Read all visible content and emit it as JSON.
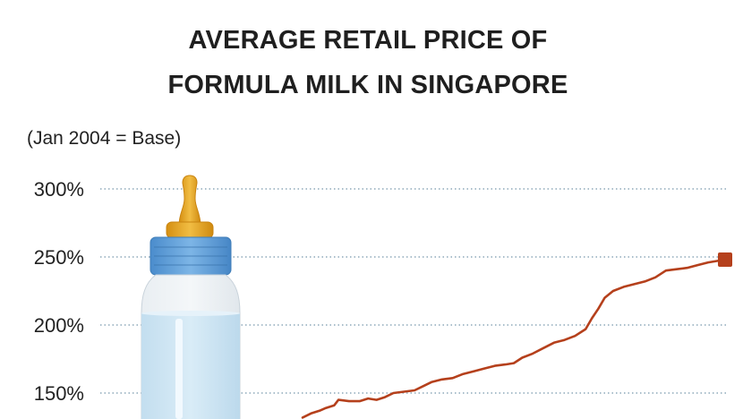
{
  "chart_data": {
    "type": "line",
    "title_lines": [
      "AVERAGE RETAIL PRICE OF",
      "FORMULA MILK IN SINGAPORE"
    ],
    "subtitle": "(Jan 2004 = Base)",
    "y_ticks": [
      "300%",
      "250%",
      "200%",
      "150%"
    ],
    "y_tick_values": [
      300,
      250,
      200,
      150
    ],
    "ylim": [
      150,
      300
    ],
    "grid": "horizontal dotted",
    "series": [
      {
        "color": "#b5401c",
        "end_marker": "square",
        "points": [
          [
            0.0,
            132
          ],
          [
            0.02,
            135
          ],
          [
            0.04,
            137
          ],
          [
            0.055,
            139
          ],
          [
            0.075,
            141
          ],
          [
            0.085,
            145
          ],
          [
            0.11,
            144
          ],
          [
            0.135,
            144
          ],
          [
            0.155,
            146
          ],
          [
            0.175,
            145
          ],
          [
            0.195,
            147
          ],
          [
            0.215,
            150
          ],
          [
            0.24,
            151
          ],
          [
            0.265,
            152
          ],
          [
            0.285,
            155
          ],
          [
            0.305,
            158
          ],
          [
            0.33,
            160
          ],
          [
            0.355,
            161
          ],
          [
            0.38,
            164
          ],
          [
            0.405,
            166
          ],
          [
            0.43,
            168
          ],
          [
            0.455,
            170
          ],
          [
            0.48,
            171
          ],
          [
            0.5,
            172
          ],
          [
            0.52,
            176
          ],
          [
            0.545,
            179
          ],
          [
            0.57,
            183
          ],
          [
            0.595,
            187
          ],
          [
            0.62,
            189
          ],
          [
            0.645,
            192
          ],
          [
            0.67,
            197
          ],
          [
            0.685,
            205
          ],
          [
            0.7,
            212
          ],
          [
            0.715,
            220
          ],
          [
            0.735,
            225
          ],
          [
            0.76,
            228
          ],
          [
            0.785,
            230
          ],
          [
            0.81,
            232
          ],
          [
            0.835,
            235
          ],
          [
            0.86,
            240
          ],
          [
            0.885,
            241
          ],
          [
            0.91,
            242
          ],
          [
            0.935,
            244
          ],
          [
            0.96,
            246
          ],
          [
            1.0,
            248
          ]
        ]
      }
    ]
  },
  "colors": {
    "line": "#b5401c",
    "grid": "#8ea9ba",
    "bottle_body": "#cfe4f1",
    "bottle_cap": "#5b9bd1",
    "nipple": "#e5a21b"
  }
}
